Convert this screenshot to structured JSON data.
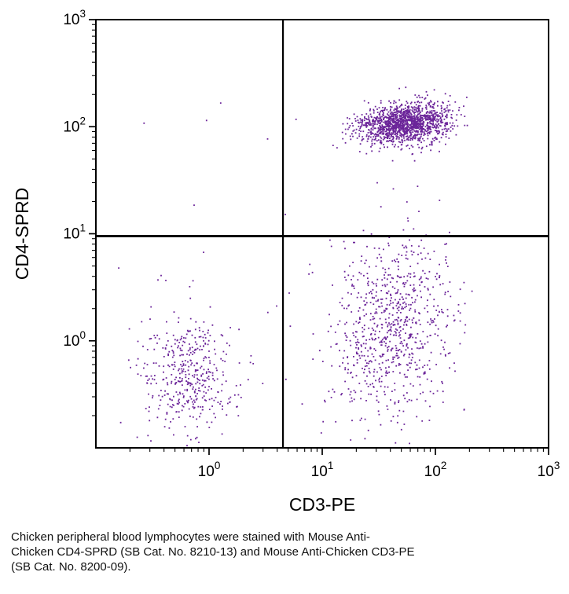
{
  "chart_data": {
    "type": "scatter",
    "title": "",
    "xlabel": "CD3-PE",
    "ylabel": "CD4-SPRD",
    "x_scale": "log",
    "y_scale": "log",
    "x_range_log": [
      -1,
      3
    ],
    "y_range_log": [
      -1,
      3
    ],
    "major_tick_exponents": [
      0,
      1,
      2,
      3
    ],
    "tick_label_base": "10",
    "quadrant_gate": {
      "x_value": 4.5,
      "y_value": 9.5
    },
    "dot_color": "#6B2499",
    "axis_color": "#000000",
    "grid": false,
    "legend": "none",
    "populations": [
      {
        "name": "CD3+CD4+ lymphocytes",
        "dist": "gauss",
        "n": 1500,
        "x_log_mean": 1.72,
        "x_log_sd": 0.2,
        "y_log_mean": 2.03,
        "y_log_sd": 0.09,
        "tilt": 0.1
      },
      {
        "name": "CD3+CD4- lymphocytes",
        "dist": "gauss",
        "n": 800,
        "x_log_mean": 1.62,
        "x_log_sd": 0.26,
        "y_log_mean": 0.12,
        "y_log_sd": 0.42,
        "tilt": 0.2
      },
      {
        "name": "CD3-CD4- lymphocytes",
        "dist": "gauss",
        "n": 420,
        "x_log_mean": -0.17,
        "x_log_sd": 0.2,
        "y_log_mean": -0.33,
        "y_log_sd": 0.26,
        "tilt": 0.0
      },
      {
        "name": "scatter-noise-lower",
        "dist": "uniform",
        "n": 45,
        "x_log_range": [
          -0.9,
          2.3
        ],
        "y_log_range": [
          -1.0,
          0.9
        ]
      },
      {
        "name": "scatter-noise-upper",
        "dist": "uniform",
        "n": 12,
        "x_log_range": [
          -0.6,
          2.4
        ],
        "y_log_range": [
          1.1,
          2.4
        ]
      }
    ]
  },
  "caption": {
    "lines": [
      "Chicken peripheral blood lymphocytes were stained with Mouse Anti-",
      "Chicken CD4-SPRD (SB Cat. No. 8210-13) and Mouse Anti-Chicken CD3-PE",
      "(SB Cat. No. 8200-09)."
    ]
  }
}
